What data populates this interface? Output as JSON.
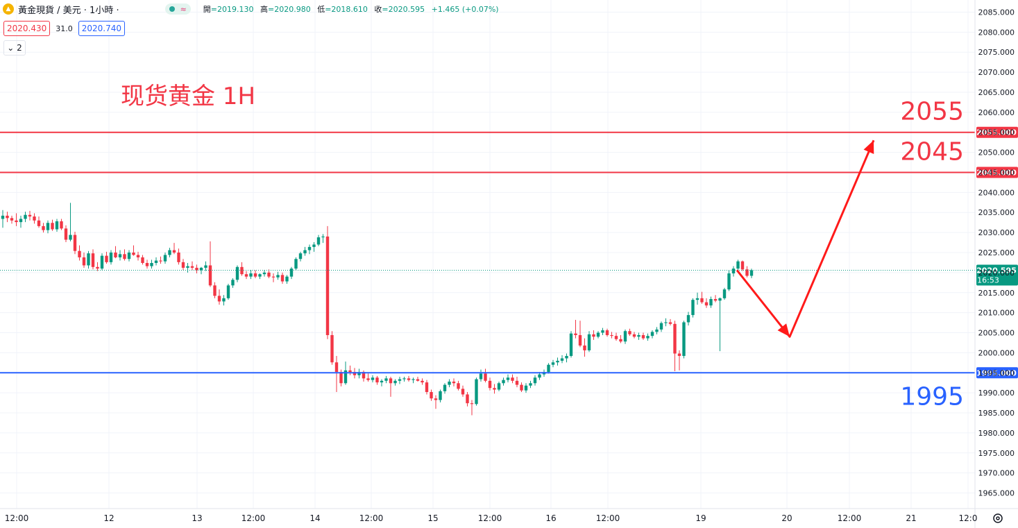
{
  "header": {
    "symbol": "黃金現貨 / 美元 · 1小時 ·",
    "icon": "gold-coin-icon",
    "ohlc": [
      {
        "label": "開",
        "value": "=2019.130"
      },
      {
        "label": "高",
        "value": "=2020.980"
      },
      {
        "label": "低",
        "value": "=2018.610"
      },
      {
        "label": "收",
        "value": "=2020.595"
      },
      {
        "label": "",
        "value": "+1.465 (+0.07%)"
      }
    ]
  },
  "trade": {
    "sell": "2020.430",
    "spread": "31.0",
    "buy": "2020.740",
    "collapse": "2"
  },
  "chart_data": {
    "type": "candlestick",
    "title": "现货黄金 1H",
    "ylim": [
      1962.5,
      2087.5
    ],
    "y_ticks": [
      "2085.000",
      "2080.000",
      "2075.000",
      "2070.000",
      "2065.000",
      "2060.000",
      "2055.000",
      "2050.000",
      "2045.000",
      "2040.000",
      "2035.000",
      "2030.000",
      "2025.000",
      "2020.000",
      "2015.000",
      "2010.000",
      "2005.000",
      "2000.000",
      "1995.000",
      "1990.000",
      "1985.000",
      "1980.000",
      "1975.000",
      "1970.000",
      "1965.000"
    ],
    "x_ticks": [
      "12:00",
      "12",
      "13",
      "12:00",
      "14",
      "12:00",
      "15",
      "12:00",
      "16",
      "12:00",
      "19",
      "20",
      "12:00",
      "21",
      "12:0"
    ],
    "ohlc": [
      [
        2033.4,
        2035.6,
        2031.2,
        2034.2
      ],
      [
        2034.2,
        2035.2,
        2032.6,
        2033.6
      ],
      [
        2033.6,
        2034.2,
        2032.2,
        2033.0
      ],
      [
        2033.0,
        2034.8,
        2031.6,
        2032.6
      ],
      [
        2032.6,
        2034.2,
        2031.2,
        2033.4
      ],
      [
        2033.4,
        2035.2,
        2032.6,
        2034.4
      ],
      [
        2034.4,
        2035.4,
        2033.0,
        2034.0
      ],
      [
        2034.0,
        2034.8,
        2032.2,
        2033.0
      ],
      [
        2033.0,
        2034.0,
        2031.2,
        2031.6
      ],
      [
        2031.6,
        2032.4,
        2030.0,
        2030.6
      ],
      [
        2030.6,
        2033.0,
        2029.8,
        2032.4
      ],
      [
        2032.4,
        2033.2,
        2030.4,
        2030.8
      ],
      [
        2030.8,
        2033.4,
        2030.2,
        2032.8
      ],
      [
        2032.8,
        2033.4,
        2030.6,
        2031.0
      ],
      [
        2031.0,
        2031.8,
        2027.6,
        2028.2
      ],
      [
        2028.2,
        2037.4,
        2027.8,
        2029.4
      ],
      [
        2029.4,
        2030.2,
        2024.6,
        2025.4
      ],
      [
        2025.4,
        2026.8,
        2023.0,
        2023.8
      ],
      [
        2023.8,
        2025.0,
        2021.2,
        2021.8
      ],
      [
        2021.8,
        2025.4,
        2021.0,
        2024.8
      ],
      [
        2024.8,
        2025.8,
        2020.8,
        2021.4
      ],
      [
        2021.4,
        2022.6,
        2020.4,
        2021.0
      ],
      [
        2021.0,
        2024.8,
        2020.6,
        2024.2
      ],
      [
        2024.2,
        2025.2,
        2022.2,
        2022.6
      ],
      [
        2022.6,
        2025.6,
        2022.0,
        2025.0
      ],
      [
        2025.0,
        2026.6,
        2023.6,
        2023.8
      ],
      [
        2023.8,
        2025.6,
        2023.0,
        2024.6
      ],
      [
        2024.6,
        2025.8,
        2023.0,
        2023.4
      ],
      [
        2023.4,
        2025.6,
        2022.8,
        2025.0
      ],
      [
        2025.0,
        2026.8,
        2024.2,
        2024.4
      ],
      [
        2024.4,
        2025.2,
        2023.0,
        2023.8
      ],
      [
        2023.8,
        2024.4,
        2022.0,
        2022.4
      ],
      [
        2022.4,
        2023.2,
        2021.0,
        2021.6
      ],
      [
        2021.6,
        2023.2,
        2021.0,
        2022.4
      ],
      [
        2022.4,
        2023.8,
        2021.8,
        2023.0
      ],
      [
        2023.0,
        2024.0,
        2022.2,
        2022.8
      ],
      [
        2022.8,
        2025.0,
        2022.2,
        2024.4
      ],
      [
        2024.4,
        2026.2,
        2023.8,
        2025.6
      ],
      [
        2025.6,
        2027.4,
        2024.6,
        2025.0
      ],
      [
        2025.0,
        2026.0,
        2022.0,
        2022.6
      ],
      [
        2022.6,
        2023.4,
        2020.6,
        2021.2
      ],
      [
        2021.2,
        2022.4,
        2020.0,
        2021.6
      ],
      [
        2021.6,
        2022.8,
        2020.6,
        2021.2
      ],
      [
        2021.2,
        2022.0,
        2019.8,
        2020.6
      ],
      [
        2020.6,
        2021.4,
        2019.6,
        2021.2
      ],
      [
        2021.2,
        2022.8,
        2020.4,
        2021.8
      ],
      [
        2021.8,
        2027.8,
        2016.4,
        2016.8
      ],
      [
        2016.8,
        2017.6,
        2013.6,
        2014.2
      ],
      [
        2014.2,
        2015.8,
        2012.0,
        2012.8
      ],
      [
        2012.8,
        2014.4,
        2011.8,
        2013.6
      ],
      [
        2013.6,
        2017.2,
        2013.2,
        2016.8
      ],
      [
        2016.8,
        2018.6,
        2016.2,
        2018.2
      ],
      [
        2018.2,
        2021.8,
        2017.6,
        2021.4
      ],
      [
        2021.4,
        2022.6,
        2019.2,
        2019.6
      ],
      [
        2019.6,
        2020.4,
        2018.4,
        2019.0
      ],
      [
        2019.0,
        2020.6,
        2018.4,
        2019.8
      ],
      [
        2019.8,
        2020.6,
        2018.6,
        2019.0
      ],
      [
        2019.0,
        2019.8,
        2018.4,
        2019.6
      ],
      [
        2019.6,
        2020.6,
        2019.0,
        2020.0
      ],
      [
        2020.0,
        2020.8,
        2018.6,
        2019.0
      ],
      [
        2019.0,
        2019.8,
        2017.6,
        2018.8
      ],
      [
        2018.8,
        2020.2,
        2018.2,
        2019.4
      ],
      [
        2019.4,
        2020.0,
        2017.2,
        2017.8
      ],
      [
        2017.8,
        2019.4,
        2017.2,
        2019.0
      ],
      [
        2019.0,
        2021.4,
        2018.4,
        2021.0
      ],
      [
        2021.0,
        2023.8,
        2020.6,
        2023.4
      ],
      [
        2023.4,
        2025.2,
        2022.8,
        2024.8
      ],
      [
        2024.8,
        2026.4,
        2024.2,
        2025.6
      ],
      [
        2025.6,
        2027.0,
        2024.6,
        2026.4
      ],
      [
        2026.4,
        2027.6,
        2025.2,
        2027.0
      ],
      [
        2027.0,
        2029.4,
        2026.6,
        2028.8
      ],
      [
        2028.8,
        2029.6,
        2027.4,
        2029.0
      ],
      [
        2029.0,
        2031.6,
        2003.4,
        2004.4
      ],
      [
        2004.4,
        2005.4,
        1997.0,
        1997.6
      ],
      [
        1997.6,
        1999.2,
        1990.2,
        1995.2
      ],
      [
        1995.2,
        1995.8,
        1991.6,
        1992.4
      ],
      [
        1992.4,
        1997.8,
        1992.0,
        1995.6
      ],
      [
        1995.6,
        1996.8,
        1994.4,
        1995.2
      ],
      [
        1995.2,
        1996.2,
        1993.6,
        1994.4
      ],
      [
        1994.4,
        1996.0,
        1993.6,
        1995.2
      ],
      [
        1995.2,
        1995.6,
        1992.8,
        1993.6
      ],
      [
        1993.6,
        1994.8,
        1992.8,
        1993.2
      ],
      [
        1993.2,
        1994.4,
        1992.6,
        1993.8
      ],
      [
        1993.8,
        1994.2,
        1992.0,
        1992.6
      ],
      [
        1992.6,
        1993.4,
        1991.6,
        1993.0
      ],
      [
        1993.0,
        1994.2,
        1992.4,
        1993.6
      ],
      [
        1993.6,
        1994.0,
        1989.0,
        1992.4
      ],
      [
        1992.4,
        1993.4,
        1991.8,
        1993.0
      ],
      [
        1993.0,
        1994.0,
        1992.2,
        1993.4
      ],
      [
        1993.4,
        1994.0,
        1992.8,
        1993.6
      ],
      [
        1993.6,
        1994.2,
        1992.8,
        1993.2
      ],
      [
        1993.2,
        1993.8,
        1992.4,
        1993.4
      ],
      [
        1993.4,
        1994.0,
        1992.8,
        1993.0
      ],
      [
        1993.0,
        1993.6,
        1992.0,
        1992.6
      ],
      [
        1992.6,
        1993.2,
        1989.6,
        1990.2
      ],
      [
        1990.2,
        1990.8,
        1988.0,
        1988.6
      ],
      [
        1988.6,
        1989.4,
        1986.0,
        1988.2
      ],
      [
        1988.2,
        1990.8,
        1987.6,
        1990.4
      ],
      [
        1990.4,
        1992.4,
        1989.8,
        1992.0
      ],
      [
        1992.0,
        1993.4,
        1991.4,
        1992.8
      ],
      [
        1992.8,
        1993.6,
        1991.6,
        1992.4
      ],
      [
        1992.4,
        1993.0,
        1990.6,
        1991.0
      ],
      [
        1991.0,
        1991.8,
        1989.0,
        1989.6
      ],
      [
        1989.6,
        1990.2,
        1986.6,
        1987.4
      ],
      [
        1987.4,
        1988.2,
        1984.4,
        1987.2
      ],
      [
        1987.2,
        1993.8,
        1986.8,
        1993.4
      ],
      [
        1993.4,
        1995.8,
        1992.8,
        1994.8
      ],
      [
        1994.8,
        1996.0,
        1992.6,
        1993.0
      ],
      [
        1993.0,
        1993.8,
        1990.6,
        1991.2
      ],
      [
        1991.2,
        1992.2,
        1989.8,
        1990.8
      ],
      [
        1990.8,
        1992.8,
        1990.4,
        1992.4
      ],
      [
        1992.4,
        1993.8,
        1991.8,
        1993.2
      ],
      [
        1993.2,
        1994.6,
        1992.6,
        1993.8
      ],
      [
        1993.8,
        1994.6,
        1992.4,
        1993.0
      ],
      [
        1993.0,
        1994.0,
        1991.4,
        1992.0
      ],
      [
        1992.0,
        1992.6,
        1990.2,
        1990.6
      ],
      [
        1990.6,
        1992.4,
        1990.0,
        1991.8
      ],
      [
        1991.8,
        1993.0,
        1991.2,
        1992.4
      ],
      [
        1992.4,
        1994.4,
        1991.8,
        1993.8
      ],
      [
        1993.8,
        1995.2,
        1993.2,
        1994.6
      ],
      [
        1994.6,
        1995.8,
        1994.0,
        1995.2
      ],
      [
        1995.2,
        1997.4,
        1994.8,
        1997.0
      ],
      [
        1997.0,
        1998.2,
        1996.4,
        1997.6
      ],
      [
        1997.6,
        1998.8,
        1996.8,
        1998.0
      ],
      [
        1998.0,
        1999.4,
        1997.4,
        1998.6
      ],
      [
        1998.6,
        1999.8,
        1997.6,
        1999.2
      ],
      [
        1999.2,
        2005.4,
        1998.8,
        2004.8
      ],
      [
        2004.8,
        2008.2,
        2003.6,
        2004.4
      ],
      [
        2004.4,
        2008.0,
        2001.4,
        2001.8
      ],
      [
        2001.8,
        2003.6,
        1999.0,
        2000.6
      ],
      [
        2000.6,
        2005.4,
        2000.2,
        2004.6
      ],
      [
        2004.6,
        2005.6,
        2003.2,
        2004.0
      ],
      [
        2004.0,
        2005.4,
        2003.6,
        2005.0
      ],
      [
        2005.0,
        2006.2,
        2004.4,
        2005.6
      ],
      [
        2005.6,
        2006.0,
        2004.0,
        2004.4
      ],
      [
        2004.4,
        2005.2,
        2003.6,
        2004.2
      ],
      [
        2004.2,
        2005.0,
        2003.0,
        2003.4
      ],
      [
        2003.4,
        2004.4,
        2002.4,
        2002.8
      ],
      [
        2002.8,
        2005.8,
        2002.2,
        2005.4
      ],
      [
        2005.4,
        2006.0,
        2004.2,
        2004.6
      ],
      [
        2004.6,
        2005.2,
        2003.6,
        2004.0
      ],
      [
        2004.0,
        2005.0,
        2003.2,
        2004.4
      ],
      [
        2004.4,
        2005.0,
        2003.2,
        2003.6
      ],
      [
        2003.6,
        2004.8,
        2003.0,
        2004.2
      ],
      [
        2004.2,
        2005.6,
        2003.6,
        2005.2
      ],
      [
        2005.2,
        2006.4,
        2004.6,
        2005.8
      ],
      [
        2005.8,
        2007.8,
        2005.2,
        2007.4
      ],
      [
        2007.4,
        2008.6,
        2006.6,
        2007.6
      ],
      [
        2007.6,
        2008.4,
        2006.8,
        2007.2
      ],
      [
        2007.2,
        2008.0,
        1995.4,
        1999.8
      ],
      [
        1999.8,
        2000.6,
        1995.6,
        1999.2
      ],
      [
        1999.2,
        2008.0,
        1998.6,
        2007.6
      ],
      [
        2007.6,
        2010.2,
        2006.8,
        2009.4
      ],
      [
        2009.4,
        2013.6,
        2008.8,
        2013.2
      ],
      [
        2013.2,
        2015.0,
        2012.0,
        2013.6
      ],
      [
        2013.6,
        2015.2,
        2012.2,
        2012.6
      ],
      [
        2012.6,
        2013.6,
        2011.2,
        2011.8
      ],
      [
        2011.8,
        2014.0,
        2011.2,
        2013.4
      ],
      [
        2013.4,
        2014.4,
        2012.6,
        2013.0
      ],
      [
        2013.0,
        2013.8,
        2000.4,
        2013.6
      ],
      [
        2013.6,
        2016.2,
        2013.2,
        2015.8
      ],
      [
        2015.8,
        2020.6,
        2015.4,
        2019.8
      ],
      [
        2019.8,
        2021.6,
        2019.0,
        2021.0
      ],
      [
        2021.0,
        2023.2,
        2020.4,
        2022.8
      ],
      [
        2022.8,
        2023.0,
        2020.4,
        2020.8
      ],
      [
        2020.8,
        2021.6,
        2018.8,
        2019.2
      ],
      [
        2019.2,
        2020.98,
        2018.61,
        2020.595
      ]
    ],
    "candle_colors": {
      "up": "#089981",
      "down": "#f23645"
    },
    "levels": [
      {
        "price": "2055.000",
        "color": "#f23645",
        "label": "2055"
      },
      {
        "price": "2045.000",
        "color": "#f23645",
        "label": "2045"
      },
      {
        "price": "1995.000",
        "color": "#2962ff",
        "label": "1995"
      }
    ],
    "last_price": {
      "price": "2020.595",
      "countdown": "16:53",
      "color": "#089981"
    },
    "projection": {
      "color": "#ff1a1a",
      "points": [
        [
          2020.595
        ],
        [
          2004.0
        ],
        [
          2053.0
        ]
      ]
    }
  }
}
